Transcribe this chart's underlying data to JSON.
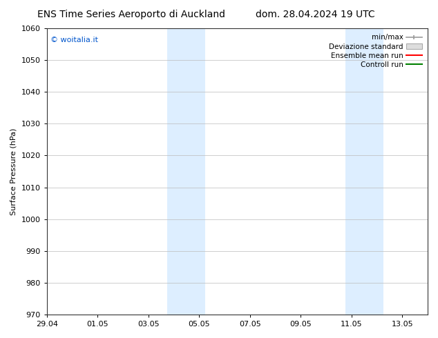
{
  "title_left": "ENS Time Series Aeroporto di Auckland",
  "title_right": "dom. 28.04.2024 19 UTC",
  "ylabel": "Surface Pressure (hPa)",
  "ylim": [
    970,
    1060
  ],
  "yticks": [
    970,
    980,
    990,
    1000,
    1010,
    1020,
    1030,
    1040,
    1050,
    1060
  ],
  "xtick_labels": [
    "29.04",
    "01.05",
    "03.05",
    "05.05",
    "07.05",
    "09.05",
    "11.05",
    "13.05"
  ],
  "xtick_positions": [
    0,
    2,
    4,
    6,
    8,
    10,
    12,
    14
  ],
  "xlim": [
    0,
    15
  ],
  "shaded_regions": [
    {
      "start": 4.75,
      "end": 6.25
    },
    {
      "start": 11.75,
      "end": 13.25
    }
  ],
  "shaded_color": "#ddeeff",
  "watermark_text": "© woitalia.it",
  "watermark_color": "#0055cc",
  "legend_entries": [
    {
      "label": "min/max",
      "color": "#aaaaaa",
      "style": "errorbar"
    },
    {
      "label": "Deviazione standard",
      "color": "#cccccc",
      "style": "fill"
    },
    {
      "label": "Ensemble mean run",
      "color": "#ff0000",
      "style": "line"
    },
    {
      "label": "Controll run",
      "color": "#008000",
      "style": "line"
    }
  ],
  "bg_color": "#ffffff",
  "font_size_title": 10,
  "font_size_axis": 8,
  "font_size_legend": 7.5,
  "font_size_ticks": 8,
  "font_size_watermark": 8
}
